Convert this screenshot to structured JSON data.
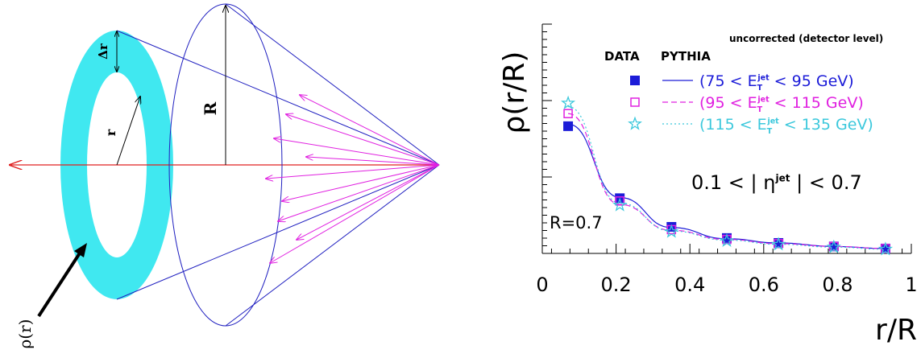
{
  "diagram": {
    "labels": {
      "delta_r": "Δr",
      "big_r": "R",
      "small_r": "r",
      "rho": "ρ(r)"
    }
  },
  "chart_data": {
    "type": "scatter",
    "ylabel": "ρ(r/R)",
    "xlabel": "r/R",
    "annotations": {
      "note": "uncorrected (detector level)",
      "radius": "R=0.7",
      "eta": {
        "pre": "0.1 < | η",
        "sup": "jet",
        "post": " | < 0.7"
      }
    },
    "legend": {
      "headers": [
        "DATA",
        "PYTHIA"
      ],
      "rows": [
        {
          "pre": "(75 < E",
          "sub": "T",
          "sup": "jet",
          "post": " < 95 GeV)"
        },
        {
          "pre": "(95 < E",
          "sub": "T",
          "sup": "jet",
          "post": " < 115 GeV)"
        },
        {
          "pre": "(115 < E",
          "sub": "T",
          "sup": "jet",
          "post": " < 135 GeV)"
        }
      ]
    },
    "xlim": [
      0,
      1
    ],
    "xticks": [
      0,
      0.2,
      0.4,
      0.6,
      0.8,
      1
    ],
    "ylim": [
      0,
      3.28
    ],
    "x": [
      0.07,
      0.21,
      0.35,
      0.5,
      0.64,
      0.79,
      0.93
    ],
    "series": [
      {
        "kind": "data",
        "marker": "filled-square",
        "color": "#1c1cd8",
        "values": [
          1.82,
          0.79,
          0.38,
          0.22,
          0.15,
          0.1,
          0.07
        ]
      },
      {
        "kind": "data",
        "marker": "open-square",
        "color": "#e020e0",
        "values": [
          2.0,
          0.75,
          0.34,
          0.2,
          0.14,
          0.1,
          0.07
        ]
      },
      {
        "kind": "data",
        "marker": "open-star",
        "color": "#3cc8dc",
        "values": [
          2.15,
          0.69,
          0.31,
          0.18,
          0.13,
          0.09,
          0.06
        ]
      },
      {
        "kind": "pythia",
        "dash": "solid",
        "color": "#1c1cd8",
        "values": [
          1.85,
          0.8,
          0.37,
          0.21,
          0.15,
          0.1,
          0.07
        ]
      },
      {
        "kind": "pythia",
        "dash": "dashed",
        "color": "#e020e0",
        "values": [
          2.0,
          0.7,
          0.33,
          0.2,
          0.14,
          0.1,
          0.07
        ]
      },
      {
        "kind": "pythia",
        "dash": "dotted",
        "color": "#3cc8dc",
        "values": [
          2.1,
          0.72,
          0.32,
          0.19,
          0.13,
          0.09,
          0.06
        ]
      }
    ]
  }
}
